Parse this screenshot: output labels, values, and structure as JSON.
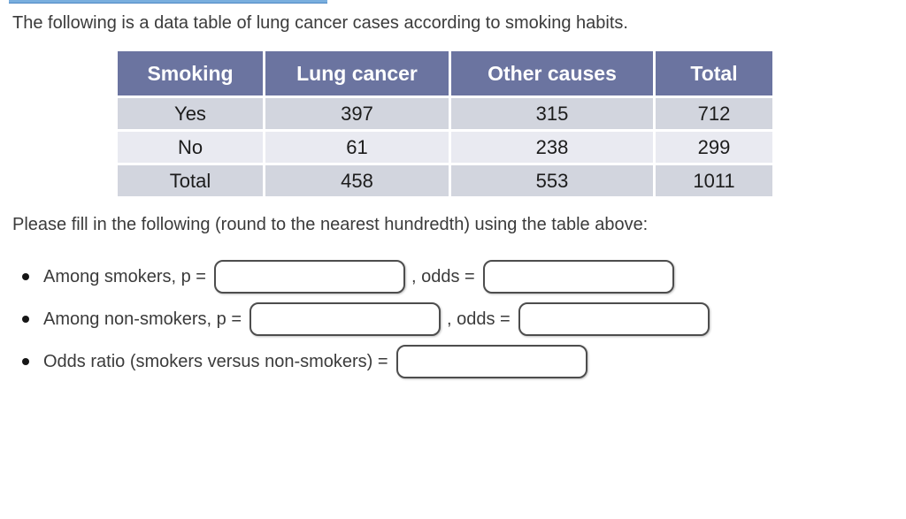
{
  "accents": {
    "link_underline_color": "#79aede",
    "table_header_bg": "#6b74a0",
    "table_row_bg": "#d2d5de",
    "table_row_alt_bg": "#e9eaf1"
  },
  "intro": "The following is a data table of lung cancer cases according to smoking habits.",
  "table": {
    "headers": [
      "Smoking",
      "Lung cancer",
      "Other causes",
      "Total"
    ],
    "rows": [
      {
        "label": "Yes",
        "values": [
          "397",
          "315",
          "712"
        ]
      },
      {
        "label": "No",
        "values": [
          "61",
          "238",
          "299"
        ]
      },
      {
        "label": "Total",
        "values": [
          "458",
          "553",
          "1011"
        ]
      }
    ]
  },
  "instruction": "Please fill in the following (round to the nearest hundredth) using the table above:",
  "questions": [
    {
      "label": "Among smokers, p =",
      "middle": ", odds =",
      "inputs": [
        {
          "value": ""
        },
        {
          "value": ""
        }
      ]
    },
    {
      "label": "Among non-smokers, p =",
      "middle": ", odds =",
      "inputs": [
        {
          "value": ""
        },
        {
          "value": ""
        }
      ]
    },
    {
      "label": "Odds ratio (smokers versus non-smokers) =",
      "inputs": [
        {
          "value": ""
        }
      ]
    }
  ]
}
